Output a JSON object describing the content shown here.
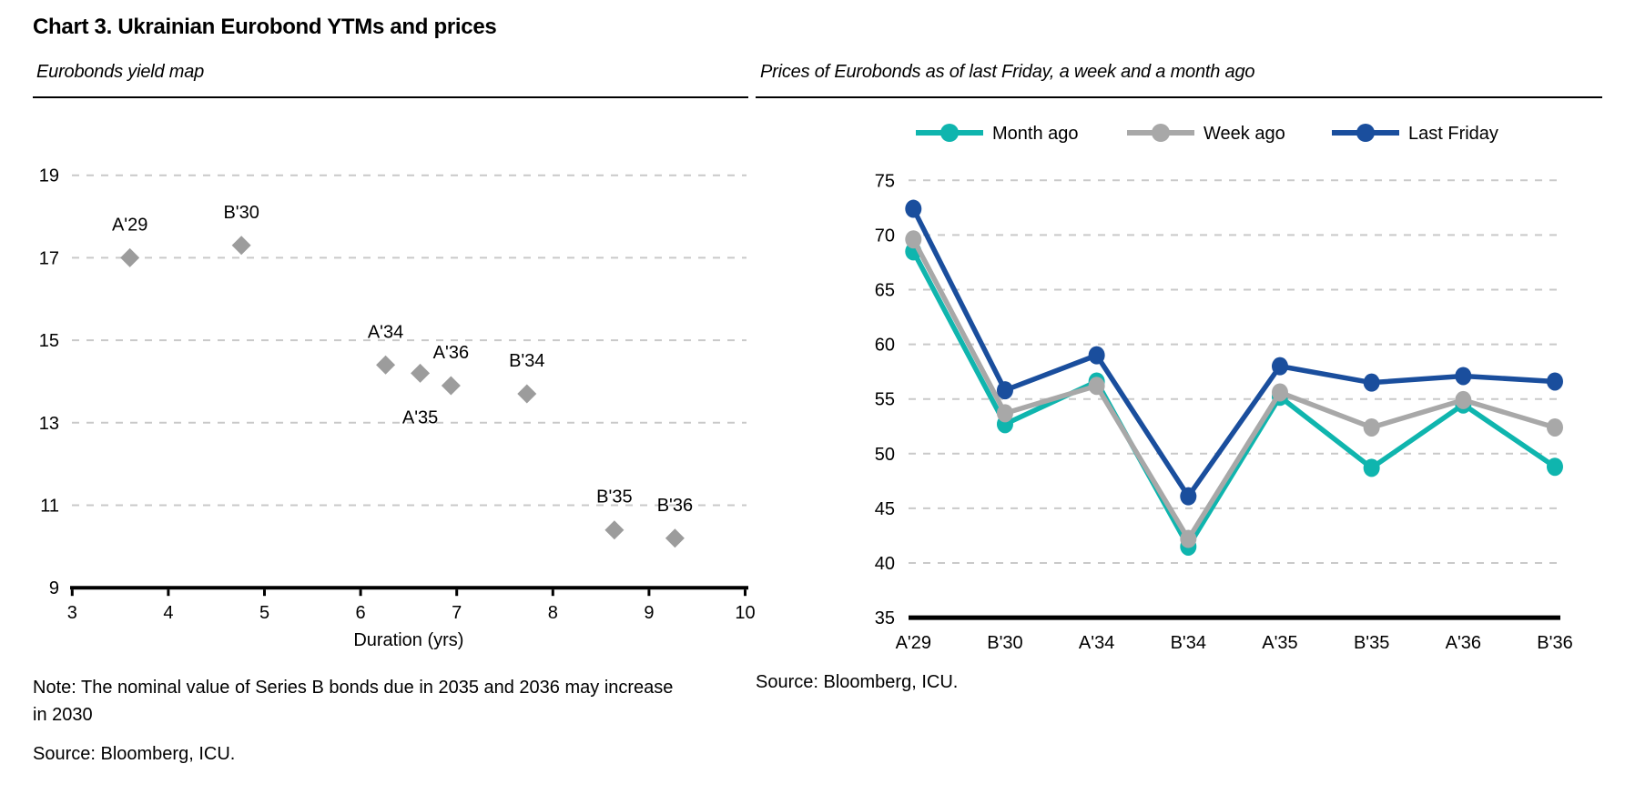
{
  "figure": {
    "title": "Chart 3. Ukrainian Eurobond YTMs and prices"
  },
  "panels": {
    "left": {
      "subtitle": "Eurobonds yield map",
      "note": "Note: The nominal value of Series B bonds due in 2035 and 2036 may increase in 2030",
      "source": "Source: Bloomberg, ICU."
    },
    "right": {
      "subtitle": "Prices of Eurobonds as of last Friday, a week and a month ago",
      "source": "Source: Bloomberg, ICU."
    }
  },
  "colors": {
    "month_ago": "#0fb5ae",
    "week_ago": "#a8a8a8",
    "last_friday": "#1a4e9d",
    "scatter_marker": "#9c9c9c",
    "gridline": "#c9c9c9",
    "axis": "#000000"
  },
  "chart_data": [
    {
      "type": "scatter",
      "title": "Eurobonds yield map",
      "xlabel": "Duration (yrs)",
      "ylabel": "",
      "xlim": [
        3,
        10
      ],
      "ylim": [
        9,
        19
      ],
      "xticks": [
        3,
        4,
        5,
        6,
        7,
        8,
        9,
        10
      ],
      "yticks": [
        9,
        11,
        13,
        15,
        17,
        19
      ],
      "grid": "horizontal-dashed",
      "marker": "diamond",
      "points": [
        {
          "label": "A'29",
          "x": 3.6,
          "y": 17.0,
          "label_pos": "above"
        },
        {
          "label": "B'30",
          "x": 4.76,
          "y": 17.3,
          "label_pos": "above"
        },
        {
          "label": "A'34",
          "x": 6.26,
          "y": 14.4,
          "label_pos": "above"
        },
        {
          "label": "A'35",
          "x": 6.62,
          "y": 14.2,
          "label_pos": "below"
        },
        {
          "label": "A'36",
          "x": 6.94,
          "y": 13.9,
          "label_pos": "above"
        },
        {
          "label": "B'34",
          "x": 7.73,
          "y": 13.7,
          "label_pos": "above"
        },
        {
          "label": "B'35",
          "x": 8.64,
          "y": 10.4,
          "label_pos": "above"
        },
        {
          "label": "B'36",
          "x": 9.27,
          "y": 10.2,
          "label_pos": "above"
        }
      ]
    },
    {
      "type": "line",
      "title": "Prices of Eurobonds as of last Friday, a week and a month ago",
      "categories": [
        "A'29",
        "B'30",
        "A'34",
        "B'34",
        "A'35",
        "B'35",
        "A'36",
        "B'36"
      ],
      "ylim": [
        35,
        75
      ],
      "yticks": [
        35,
        40,
        45,
        50,
        55,
        60,
        65,
        70,
        75
      ],
      "grid": "horizontal-dashed",
      "legend_position": "top",
      "series": [
        {
          "name": "Month ago",
          "color_key": "month_ago",
          "values": [
            68.5,
            52.7,
            56.6,
            41.5,
            55.2,
            48.7,
            54.5,
            48.8
          ]
        },
        {
          "name": "Week ago",
          "color_key": "week_ago",
          "values": [
            69.6,
            53.7,
            56.2,
            42.2,
            55.6,
            52.4,
            54.9,
            52.4
          ]
        },
        {
          "name": "Last Friday",
          "color_key": "last_friday",
          "values": [
            72.4,
            55.8,
            59.0,
            46.1,
            58.0,
            56.5,
            57.1,
            56.6
          ]
        }
      ]
    }
  ]
}
